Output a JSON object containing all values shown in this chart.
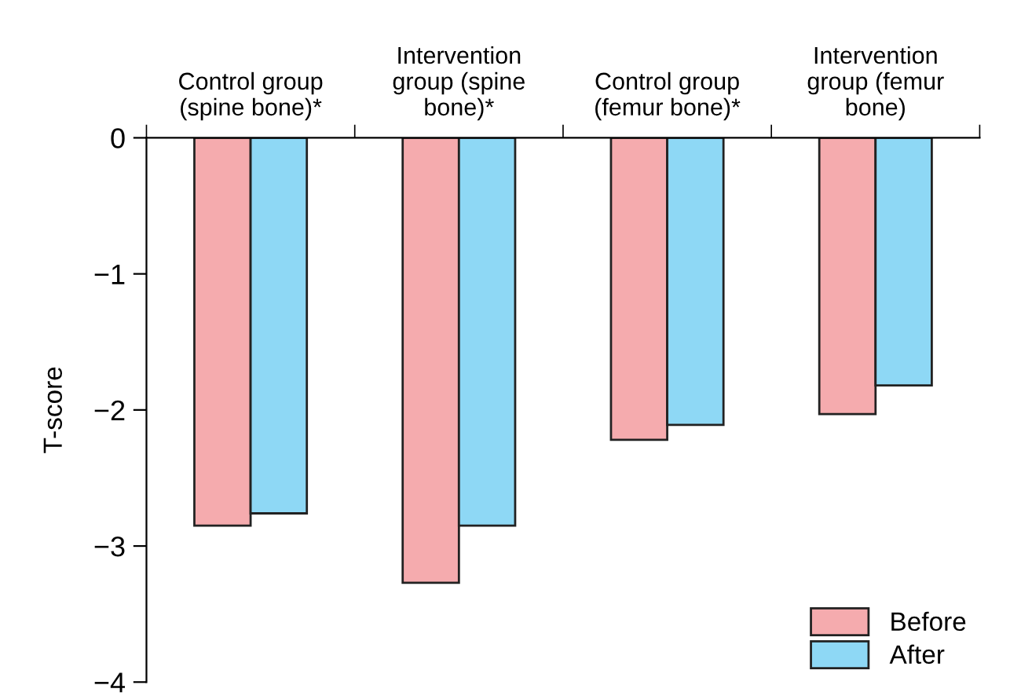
{
  "chart_data": {
    "type": "bar",
    "ylabel": "T-score",
    "categories": [
      "Control group\n(spine bone)*",
      "Intervention\ngroup (spine\nbone)*",
      "Control group\n(femur bone)*",
      "Intervention\ngroup (femur\nbone)"
    ],
    "series": [
      {
        "name": "Before",
        "color": "#f5abae",
        "values": [
          -2.85,
          -3.27,
          -2.22,
          -2.03
        ]
      },
      {
        "name": "After",
        "color": "#8ed8f5",
        "values": [
          -2.76,
          -2.85,
          -2.11,
          -1.82
        ]
      }
    ],
    "ylim": [
      -4,
      0
    ],
    "yticks": [
      {
        "value": -4,
        "label": "−4"
      },
      {
        "value": -3,
        "label": "−3"
      },
      {
        "value": -2,
        "label": "−2"
      },
      {
        "value": -1,
        "label": "−1"
      },
      0
    ],
    "grid": false,
    "legend": "bottom right"
  }
}
